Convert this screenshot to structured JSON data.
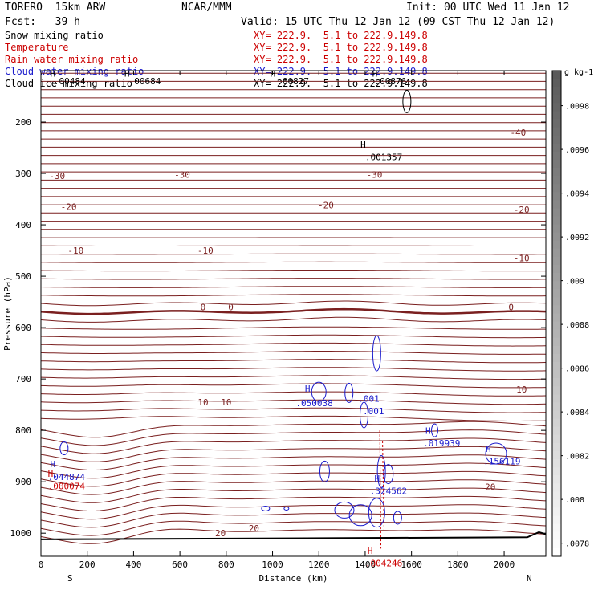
{
  "header": {
    "model": "TORERO  15km ARW",
    "center": "NCAR/MMM",
    "init": "Init: 00 UTC Wed 11 Jan 12",
    "forecast": "Fcst:   39 h",
    "valid": "Valid: 15 UTC Thu 12 Jan 12 (09 CST Thu 12 Jan 12)"
  },
  "legend": [
    {
      "name": "Snow mixing ratio",
      "xy": "XY= 222.9.  5.1 to 222.9.149.8",
      "color": "#000000"
    },
    {
      "name": "Temperature",
      "xy": "XY= 222.9.  5.1 to 222.9.149.8",
      "color": "#cc0000"
    },
    {
      "name": "Rain water mixing ratio",
      "xy": "XY= 222.9.  5.1 to 222.9.149.8",
      "color": "#cc0000"
    },
    {
      "name": "Cloud water mixing ratio",
      "xy": "XY= 222.9.  5.1 to 222.9.149.8",
      "color": "#0000cc"
    },
    {
      "name": "Cloud ice mixing ratio",
      "xy": "XY= 222.9.  5.1 to 222.9.149.8",
      "color": "#000000"
    }
  ],
  "colors": {
    "temperature": "#7a1f1f",
    "zero_isotherm": "#7a1f1f",
    "cloud_water": "#1a1acc",
    "rain": "#cc0000",
    "terrain": "#000000"
  },
  "chart_data": {
    "type": "contour",
    "xlabel": "Distance (km)",
    "ylabel": "Pressure (hPa)",
    "xlim": [
      0,
      2180
    ],
    "ylim": [
      1045,
      100
    ],
    "x_ticks": [
      0,
      200,
      400,
      600,
      800,
      1000,
      1200,
      1400,
      1600,
      1800,
      2000
    ],
    "y_ticks": [
      200,
      300,
      400,
      500,
      600,
      700,
      800,
      900,
      1000
    ],
    "end_labels": {
      "left": "S",
      "right": "N"
    },
    "colorbar": {
      "unit": "g kg-1",
      "ticks": [
        ".0098",
        ".0096",
        ".0094",
        ".0092",
        ".009",
        ".0088",
        ".0086",
        ".0084",
        ".0082",
        ".008",
        ".0078"
      ],
      "range": [
        0.00774,
        0.00996
      ]
    },
    "temperature_contour_labels": [
      {
        "text": "-40",
        "x": 2060,
        "p": 220
      },
      {
        "text": "-30",
        "x": 70,
        "p": 305
      },
      {
        "text": "-30",
        "x": 610,
        "p": 302
      },
      {
        "text": "-30",
        "x": 1440,
        "p": 302
      },
      {
        "text": "-20",
        "x": 120,
        "p": 365
      },
      {
        "text": "-20",
        "x": 1230,
        "p": 362
      },
      {
        "text": "-20",
        "x": 2075,
        "p": 370
      },
      {
        "text": "-10",
        "x": 150,
        "p": 450
      },
      {
        "text": "-10",
        "x": 710,
        "p": 450
      },
      {
        "text": "-10",
        "x": 2075,
        "p": 465
      },
      {
        "text": "0",
        "x": 700,
        "p": 560
      },
      {
        "text": "0",
        "x": 820,
        "p": 560
      },
      {
        "text": "0",
        "x": 2030,
        "p": 560
      },
      {
        "text": "10",
        "x": 700,
        "p": 745
      },
      {
        "text": "10",
        "x": 800,
        "p": 745
      },
      {
        "text": "10",
        "x": 2075,
        "p": 720
      },
      {
        "text": "20",
        "x": 1940,
        "p": 910
      },
      {
        "text": "20",
        "x": 775,
        "p": 1000
      },
      {
        "text": "20",
        "x": 920,
        "p": 990
      }
    ],
    "maxima_labels": [
      {
        "text": ".00484",
        "x": 55,
        "p": 120,
        "color": "black"
      },
      {
        "text": ".00684",
        "x": 380,
        "p": 120,
        "color": "black"
      },
      {
        "text": ".00827",
        "x": 1020,
        "p": 120,
        "color": "black"
      },
      {
        "text": ".00876",
        "x": 1440,
        "p": 120,
        "color": "black"
      },
      {
        "text": ".001357",
        "x": 1400,
        "p": 268,
        "color": "black"
      },
      {
        "text": ".050038",
        "x": 1100,
        "p": 747,
        "color": "blue"
      },
      {
        "text": ".001",
        "x": 1370,
        "p": 738,
        "color": "blue"
      },
      {
        "text": ".001",
        "x": 1390,
        "p": 762,
        "color": "blue"
      },
      {
        "text": ".019939",
        "x": 1650,
        "p": 825,
        "color": "blue"
      },
      {
        "text": ".156119",
        "x": 1910,
        "p": 860,
        "color": "blue"
      },
      {
        "text": ".044874",
        "x": 30,
        "p": 890,
        "color": "blue"
      },
      {
        "text": ".000074",
        "x": 30,
        "p": 908,
        "color": "red"
      },
      {
        "text": ".324562",
        "x": 1420,
        "p": 918,
        "color": "blue"
      },
      {
        "text": ".004246",
        "x": 1400,
        "p": 1058,
        "color": "red"
      }
    ],
    "extrema_markers": [
      {
        "x": 40,
        "p": 112,
        "color": "black"
      },
      {
        "x": 360,
        "p": 112,
        "color": "black"
      },
      {
        "x": 990,
        "p": 112,
        "color": "black"
      },
      {
        "x": 1430,
        "p": 112,
        "color": "black"
      },
      {
        "x": 1380,
        "p": 250,
        "color": "black"
      },
      {
        "x": 1140,
        "p": 725,
        "color": "blue"
      },
      {
        "x": 1660,
        "p": 807,
        "color": "blue"
      },
      {
        "x": 1920,
        "p": 842,
        "color": "blue"
      },
      {
        "x": 40,
        "p": 872,
        "color": "blue"
      },
      {
        "x": 30,
        "p": 890,
        "color": "red"
      },
      {
        "x": 1440,
        "p": 900,
        "color": "blue"
      },
      {
        "x": 1410,
        "p": 1040,
        "color": "red"
      }
    ]
  }
}
